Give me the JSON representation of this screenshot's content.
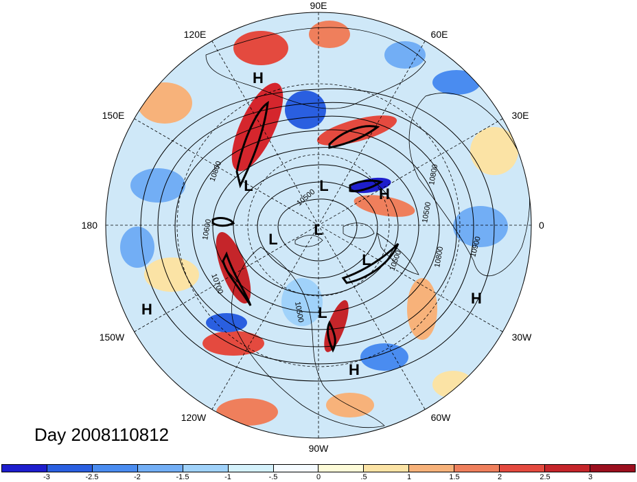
{
  "title": "Day 2008110812",
  "longitude_labels": {
    "n90E": "90E",
    "n60E": "60E",
    "n30E": "30E",
    "n0": "0",
    "n30W": "30W",
    "n60W": "60W",
    "n90W": "90W",
    "n120W": "120W",
    "n150W": "150W",
    "n180": "180",
    "n150E": "150E",
    "n120E": "120E"
  },
  "pressure_centers": [
    "H",
    "H",
    "L",
    "L",
    "L",
    "L",
    "L",
    "L",
    "H",
    "H",
    "H"
  ],
  "contour_labels": [
    "10800",
    "10600",
    "10700",
    "10500",
    "10800",
    "10500",
    "10900",
    "10800",
    "10500",
    "10500"
  ],
  "colorbar": {
    "colors": [
      "#1e1ecd",
      "#2a5fe0",
      "#4a8cf0",
      "#72aef5",
      "#a0d2fa",
      "#d4f1fb",
      "#f5fbff",
      "#fdfbd8",
      "#fbe3a5",
      "#f7b27a",
      "#ef7f5c",
      "#e44a3f",
      "#c5252a",
      "#9b0f1e"
    ],
    "labels": [
      "-3",
      "-2.5",
      "-2",
      "-1.5",
      "-1",
      "-.5",
      "0",
      ".5",
      "1",
      "1.5",
      "2",
      "2.5",
      "3"
    ]
  },
  "map_colors": {
    "ocean_base": "#cfe8f8",
    "coast": "#000000",
    "grid": "#000000"
  }
}
